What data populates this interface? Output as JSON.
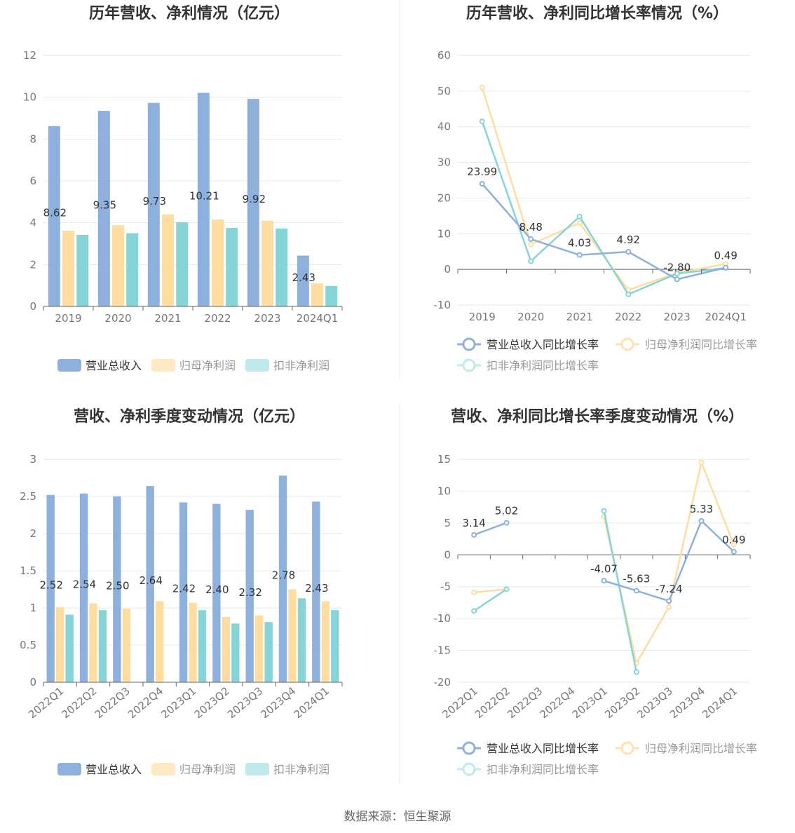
{
  "footer": {
    "source": "数据来源：恒生聚源"
  },
  "colors": {
    "revenue": "#8eb0dc",
    "net_profit": "#ffdca0",
    "deducted_profit": "#84d4d8",
    "axis": "#666666",
    "grid": "#e6e8ef",
    "title": "#333333"
  },
  "chart_data": [
    {
      "type": "bar",
      "title": "历年营收、净利情况（亿元）",
      "categories": [
        "2019",
        "2020",
        "2021",
        "2022",
        "2023",
        "2024Q1"
      ],
      "ylim": [
        0,
        12
      ],
      "yticks": [
        0,
        2,
        4,
        6,
        8,
        10,
        12
      ],
      "series": [
        {
          "name": "营业总收入",
          "values": [
            8.62,
            9.35,
            9.73,
            10.21,
            9.92,
            2.43
          ],
          "labels": [
            "8.62",
            "9.35",
            "9.73",
            "10.21",
            "9.92",
            "2.43"
          ]
        },
        {
          "name": "归母净利润",
          "values": [
            3.62,
            3.88,
            4.4,
            4.15,
            4.1,
            1.1
          ]
        },
        {
          "name": "扣非净利润",
          "values": [
            3.42,
            3.5,
            4.02,
            3.75,
            3.72,
            0.98
          ]
        }
      ],
      "legend": "bottom"
    },
    {
      "type": "line",
      "title": "历年营收、净利同比增长率情况（%）",
      "categories": [
        "2019",
        "2020",
        "2021",
        "2022",
        "2023",
        "2024Q1"
      ],
      "ylim": [
        -10,
        60
      ],
      "yticks": [
        -10,
        0,
        10,
        20,
        30,
        40,
        50,
        60
      ],
      "series": [
        {
          "name": "营业总收入同比增长率",
          "values": [
            23.99,
            8.48,
            4.03,
            4.92,
            -2.8,
            0.49
          ],
          "labels": [
            "23.99",
            "8.48",
            "4.03",
            "4.92",
            "-2.80",
            "0.49"
          ]
        },
        {
          "name": "归母净利润同比增长率",
          "values": [
            51.0,
            7.0,
            13.0,
            -5.8,
            -1.0,
            1.5
          ]
        },
        {
          "name": "扣非净利润同比增长率",
          "values": [
            41.5,
            2.3,
            14.8,
            -7.0,
            -1.2,
            0.4
          ]
        }
      ],
      "legend": "bottom"
    },
    {
      "type": "bar",
      "title": "营收、净利季度变动情况（亿元）",
      "categories": [
        "2022Q1",
        "2022Q2",
        "2022Q3",
        "2022Q4",
        "2023Q1",
        "2023Q2",
        "2023Q3",
        "2023Q4",
        "2024Q1"
      ],
      "ylim": [
        0,
        3
      ],
      "yticks": [
        0,
        0.5,
        1,
        1.5,
        2,
        2.5,
        3
      ],
      "series": [
        {
          "name": "营业总收入",
          "values": [
            2.52,
            2.54,
            2.5,
            2.64,
            2.42,
            2.4,
            2.32,
            2.78,
            2.43
          ],
          "labels": [
            "2.52",
            "2.54",
            "2.50",
            "2.64",
            "2.42",
            "2.40",
            "2.32",
            "2.78",
            "2.43"
          ]
        },
        {
          "name": "归母净利润",
          "values": [
            1.01,
            1.06,
            0.99,
            1.09,
            1.07,
            0.88,
            0.9,
            1.25,
            1.09
          ]
        },
        {
          "name": "扣非净利润",
          "values": [
            0.91,
            0.97,
            null,
            null,
            0.97,
            0.79,
            0.81,
            1.13,
            0.97
          ]
        }
      ],
      "legend": "bottom"
    },
    {
      "type": "line",
      "title": "营收、净利同比增长率季度变动情况（%）",
      "categories": [
        "2022Q1",
        "2022Q2",
        "2022Q3",
        "2022Q4",
        "2023Q1",
        "2023Q2",
        "2023Q3",
        "2023Q4",
        "2024Q1"
      ],
      "ylim": [
        -20,
        15
      ],
      "yticks": [
        -20,
        -15,
        -10,
        -5,
        0,
        5,
        10,
        15
      ],
      "series": [
        {
          "name": "营业总收入同比增长率",
          "values": [
            3.14,
            5.02,
            null,
            null,
            -4.07,
            -5.63,
            -7.24,
            5.33,
            0.49
          ],
          "labels": [
            "3.14",
            "5.02",
            "",
            "",
            "-4.07",
            "-5.63",
            "-7.24",
            "5.33",
            "0.49"
          ]
        },
        {
          "name": "归母净利润同比增长率",
          "values": [
            -5.9,
            -5.4,
            null,
            null,
            6.0,
            -17.0,
            -8.2,
            14.5,
            1.6
          ]
        },
        {
          "name": "扣非净利润同比增长率",
          "values": [
            -8.8,
            -5.4,
            null,
            null,
            6.9,
            -18.4,
            null,
            null,
            null
          ]
        }
      ],
      "legend": "bottom"
    }
  ]
}
